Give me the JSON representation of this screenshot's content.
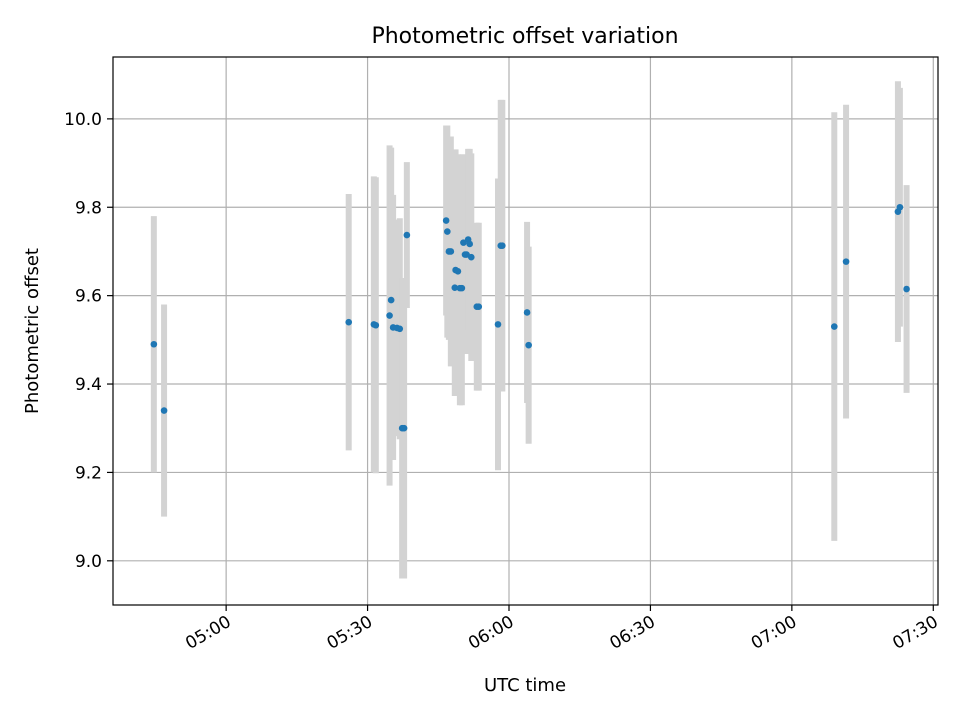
{
  "chart_data": {
    "type": "scatter",
    "title": "Photometric offset variation",
    "xlabel": "UTC time",
    "ylabel": "Photometric offset",
    "xlim": [
      "04:36",
      "07:31"
    ],
    "ylim": [
      8.9,
      10.14
    ],
    "x_ticks": [
      "05:00",
      "05:30",
      "06:00",
      "06:30",
      "07:00",
      "07:30"
    ],
    "y_ticks": [
      9.0,
      9.2,
      9.4,
      9.6,
      9.8,
      10.0
    ],
    "grid": true,
    "colors": {
      "points": "#1f77b4",
      "errorbars": "#d3d3d3",
      "grid": "#b0b0b0",
      "axes": "#000000"
    },
    "points": [
      {
        "x": "04:44:40",
        "y": 9.49,
        "err": 0.29
      },
      {
        "x": "04:46:50",
        "y": 9.34,
        "err": 0.24
      },
      {
        "x": "05:26:00",
        "y": 9.54,
        "err": 0.29
      },
      {
        "x": "05:31:20",
        "y": 9.535,
        "err": 0.335
      },
      {
        "x": "05:31:45",
        "y": 9.533,
        "err": 0.335
      },
      {
        "x": "05:34:40",
        "y": 9.555,
        "err": 0.385
      },
      {
        "x": "05:35:00",
        "y": 9.59,
        "err": 0.345
      },
      {
        "x": "05:35:25",
        "y": 9.528,
        "err": 0.3
      },
      {
        "x": "05:36:15",
        "y": 9.527,
        "err": 0.245
      },
      {
        "x": "05:36:50",
        "y": 9.525,
        "err": 0.25
      },
      {
        "x": "05:37:20",
        "y": 9.3,
        "err": 0.34
      },
      {
        "x": "05:37:45",
        "y": 9.3,
        "err": 0.34
      },
      {
        "x": "05:38:20",
        "y": 9.737,
        "err": 0.165
      },
      {
        "x": "05:46:40",
        "y": 9.77,
        "err": 0.215
      },
      {
        "x": "05:46:55",
        "y": 9.745,
        "err": 0.24
      },
      {
        "x": "05:47:15",
        "y": 9.7,
        "err": 0.2
      },
      {
        "x": "05:47:40",
        "y": 9.7,
        "err": 0.26
      },
      {
        "x": "05:48:30",
        "y": 9.618,
        "err": 0.245
      },
      {
        "x": "05:48:40",
        "y": 9.658,
        "err": 0.273
      },
      {
        "x": "05:49:10",
        "y": 9.655,
        "err": 0.265
      },
      {
        "x": "05:49:35",
        "y": 9.617,
        "err": 0.265
      },
      {
        "x": "05:50:00",
        "y": 9.617,
        "err": 0.265
      },
      {
        "x": "05:50:20",
        "y": 9.72,
        "err": 0.2
      },
      {
        "x": "05:50:40",
        "y": 9.693,
        "err": 0.225
      },
      {
        "x": "05:51:00",
        "y": 9.693,
        "err": 0.225
      },
      {
        "x": "05:51:20",
        "y": 9.727,
        "err": 0.205
      },
      {
        "x": "05:51:40",
        "y": 9.717,
        "err": 0.215
      },
      {
        "x": "05:52:00",
        "y": 9.687,
        "err": 0.235
      },
      {
        "x": "05:53:10",
        "y": 9.575,
        "err": 0.19
      },
      {
        "x": "05:53:35",
        "y": 9.575,
        "err": 0.19
      },
      {
        "x": "05:57:40",
        "y": 9.535,
        "err": 0.33
      },
      {
        "x": "05:58:15",
        "y": 9.713,
        "err": 0.33
      },
      {
        "x": "05:58:35",
        "y": 9.713,
        "err": 0.33
      },
      {
        "x": "06:03:50",
        "y": 9.562,
        "err": 0.205
      },
      {
        "x": "06:04:10",
        "y": 9.488,
        "err": 0.223
      },
      {
        "x": "07:09:00",
        "y": 9.53,
        "err": 0.485
      },
      {
        "x": "07:11:30",
        "y": 9.677,
        "err": 0.355
      },
      {
        "x": "07:22:30",
        "y": 9.79,
        "err": 0.295
      },
      {
        "x": "07:22:55",
        "y": 9.8,
        "err": 0.27
      },
      {
        "x": "07:24:20",
        "y": 9.615,
        "err": 0.235
      }
    ]
  }
}
